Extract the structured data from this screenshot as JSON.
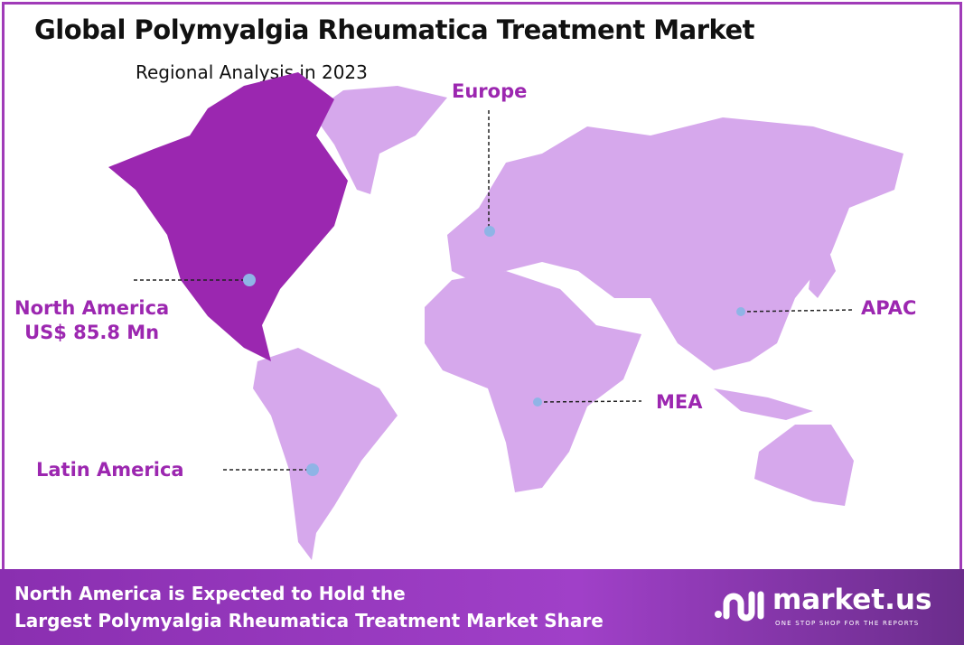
{
  "title": "Global Polymyalgia Rheumatica Treatment Market",
  "subtitle": "Regional Analysis in 2023",
  "colors": {
    "highlight": "#9b27b0",
    "region": "#d6a8ec",
    "marker": "#8fb4e6",
    "label": "#9c27b0"
  },
  "regions": {
    "north_america": {
      "name": "North America",
      "value": "US$ 85.8 Mn",
      "highlighted": true
    },
    "europe": {
      "name": "Europe"
    },
    "apac": {
      "name": "APAC"
    },
    "mea": {
      "name": "MEA"
    },
    "latin_america": {
      "name": "Latin America"
    }
  },
  "footer": {
    "line1": "North America is Expected to Hold the",
    "line2": "Largest Polymyalgia Rheumatica Treatment Market Share"
  },
  "logo": {
    "name": "market.us",
    "tagline": "ONE STOP SHOP FOR THE REPORTS"
  }
}
